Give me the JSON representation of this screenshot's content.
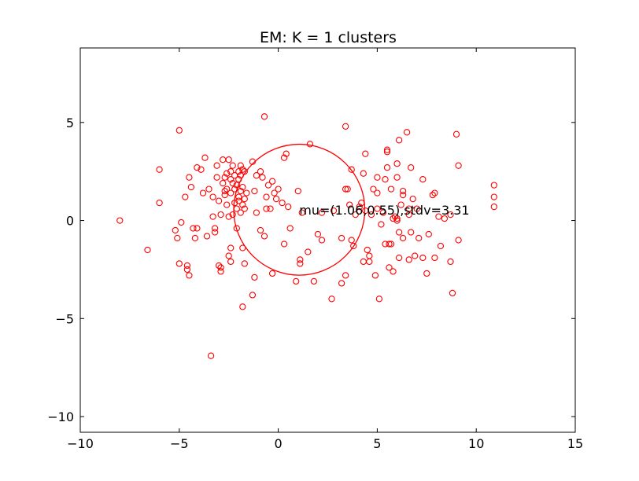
{
  "chart_data": {
    "type": "scatter",
    "title": "EM: K = 1 clusters",
    "xlabel": "",
    "ylabel": "",
    "xlim": [
      -10,
      15
    ],
    "ylim": [
      -10.8,
      8.8
    ],
    "xticks": [
      -10,
      -5,
      0,
      5,
      10,
      15
    ],
    "yticks": [
      -10,
      -5,
      0,
      5
    ],
    "xtick_labels": [
      "−10",
      "−5",
      "0",
      "5",
      "10",
      "15"
    ],
    "ytick_labels": [
      "−10",
      "−5",
      "0",
      "5"
    ],
    "grid": false,
    "marker_color": "#ff0000",
    "circle": {
      "cx": 1.06,
      "cy": 0.55,
      "r": 3.31
    },
    "annotation": {
      "text": "mu=(1.06,0.55),stdv=3.31",
      "x": 1.06,
      "y": 0.55
    },
    "points": [
      [
        -8.0,
        0.0
      ],
      [
        -6.6,
        -1.5
      ],
      [
        -6.0,
        0.9
      ],
      [
        -6.0,
        2.6
      ],
      [
        -5.2,
        -0.5
      ],
      [
        -5.1,
        -0.9
      ],
      [
        -5.0,
        4.6
      ],
      [
        -5.0,
        -2.2
      ],
      [
        -4.9,
        -0.1
      ],
      [
        -4.7,
        1.2
      ],
      [
        -4.6,
        -2.3
      ],
      [
        -4.6,
        -2.5
      ],
      [
        -4.5,
        -2.8
      ],
      [
        -4.4,
        1.7
      ],
      [
        -4.5,
        2.2
      ],
      [
        -4.3,
        -0.4
      ],
      [
        -4.2,
        -0.9
      ],
      [
        -4.1,
        2.7
      ],
      [
        -4.1,
        -0.4
      ],
      [
        -3.9,
        2.6
      ],
      [
        -3.8,
        1.4
      ],
      [
        -3.7,
        3.2
      ],
      [
        -3.6,
        -0.8
      ],
      [
        -3.5,
        1.6
      ],
      [
        -3.4,
        -6.9
      ],
      [
        -3.3,
        0.2
      ],
      [
        -3.3,
        1.2
      ],
      [
        -3.2,
        -0.6
      ],
      [
        -3.2,
        -0.4
      ],
      [
        -3.1,
        2.8
      ],
      [
        -3.1,
        2.2
      ],
      [
        -3.0,
        -2.3
      ],
      [
        -3.0,
        1.0
      ],
      [
        -2.9,
        0.3
      ],
      [
        -2.9,
        -2.6
      ],
      [
        -2.9,
        -2.4
      ],
      [
        -2.8,
        3.1
      ],
      [
        -2.8,
        1.9
      ],
      [
        -2.7,
        1.5
      ],
      [
        -2.7,
        2.2
      ],
      [
        -2.7,
        1.3
      ],
      [
        -2.6,
        1.6
      ],
      [
        -2.6,
        0.8
      ],
      [
        -2.6,
        2.4
      ],
      [
        -2.5,
        0.2
      ],
      [
        -2.5,
        3.1
      ],
      [
        -2.5,
        -1.8
      ],
      [
        -2.4,
        2.5
      ],
      [
        -2.4,
        -2.1
      ],
      [
        -2.4,
        -1.4
      ],
      [
        -2.4,
        1.4
      ],
      [
        -2.4,
        2.1
      ],
      [
        -2.3,
        2.8
      ],
      [
        -2.3,
        0.3
      ],
      [
        -2.3,
        1.9
      ],
      [
        -2.2,
        0.9
      ],
      [
        -2.2,
        1.6
      ],
      [
        -2.2,
        2.3
      ],
      [
        -2.1,
        1.8
      ],
      [
        -2.1,
        -0.4
      ],
      [
        -2.1,
        0.6
      ],
      [
        -2.0,
        1.2
      ],
      [
        -2.0,
        2.1
      ],
      [
        -2.0,
        2.5
      ],
      [
        -2.0,
        1.0
      ],
      [
        -1.9,
        2.8
      ],
      [
        -1.9,
        0.4
      ],
      [
        -1.9,
        1.5
      ],
      [
        -1.9,
        2.3
      ],
      [
        -1.8,
        0.8
      ],
      [
        -1.8,
        1.7
      ],
      [
        -1.8,
        -1.4
      ],
      [
        -1.8,
        2.6
      ],
      [
        -1.8,
        -4.4
      ],
      [
        -1.7,
        1.1
      ],
      [
        -1.7,
        0.6
      ],
      [
        -1.7,
        2.5
      ],
      [
        -1.7,
        -2.2
      ],
      [
        -1.6,
        1.4
      ],
      [
        -1.3,
        3.0
      ],
      [
        -1.3,
        -3.8
      ],
      [
        -1.2,
        -2.9
      ],
      [
        -1.2,
        1.5
      ],
      [
        -1.1,
        0.4
      ],
      [
        -1.1,
        2.3
      ],
      [
        -0.9,
        -0.5
      ],
      [
        -0.9,
        2.5
      ],
      [
        -0.8,
        2.2
      ],
      [
        -0.7,
        -0.8
      ],
      [
        -0.7,
        5.3
      ],
      [
        -0.6,
        0.6
      ],
      [
        -0.6,
        1.2
      ],
      [
        -0.5,
        1.8
      ],
      [
        -0.4,
        0.6
      ],
      [
        -0.3,
        -2.7
      ],
      [
        -0.3,
        2.0
      ],
      [
        -0.2,
        1.4
      ],
      [
        -0.1,
        1.1
      ],
      [
        0.0,
        1.6
      ],
      [
        0.2,
        0.9
      ],
      [
        0.3,
        -1.2
      ],
      [
        0.3,
        3.2
      ],
      [
        0.4,
        3.4
      ],
      [
        0.5,
        0.7
      ],
      [
        0.6,
        -0.4
      ],
      [
        0.9,
        -3.1
      ],
      [
        1.0,
        1.5
      ],
      [
        1.1,
        -2.0
      ],
      [
        1.1,
        -2.2
      ],
      [
        1.2,
        0.4
      ],
      [
        1.5,
        -1.6
      ],
      [
        1.6,
        3.9
      ],
      [
        1.8,
        -3.1
      ],
      [
        2.0,
        -0.7
      ],
      [
        2.2,
        0.4
      ],
      [
        2.2,
        -1.0
      ],
      [
        2.7,
        -4.0
      ],
      [
        2.8,
        0.5
      ],
      [
        3.2,
        -0.9
      ],
      [
        3.2,
        -3.2
      ],
      [
        3.4,
        4.8
      ],
      [
        3.4,
        1.6
      ],
      [
        3.5,
        1.6
      ],
      [
        3.4,
        -2.8
      ],
      [
        3.6,
        0.8
      ],
      [
        3.7,
        -1.0
      ],
      [
        3.7,
        2.6
      ],
      [
        3.8,
        -1.3
      ],
      [
        3.9,
        0.3
      ],
      [
        4.1,
        0.7
      ],
      [
        4.2,
        0.9
      ],
      [
        4.3,
        -2.1
      ],
      [
        4.3,
        2.4
      ],
      [
        4.4,
        3.4
      ],
      [
        4.4,
        0.5
      ],
      [
        4.5,
        -1.5
      ],
      [
        4.6,
        -2.1
      ],
      [
        4.6,
        -1.8
      ],
      [
        4.7,
        0.3
      ],
      [
        4.8,
        1.6
      ],
      [
        4.9,
        -2.8
      ],
      [
        5.0,
        2.2
      ],
      [
        5.0,
        0.6
      ],
      [
        5.0,
        1.4
      ],
      [
        5.1,
        -4.0
      ],
      [
        5.2,
        -0.2
      ],
      [
        5.3,
        0.4
      ],
      [
        5.4,
        2.1
      ],
      [
        5.4,
        -1.2
      ],
      [
        5.5,
        3.6
      ],
      [
        5.5,
        3.5
      ],
      [
        5.5,
        2.7
      ],
      [
        5.6,
        -2.4
      ],
      [
        5.6,
        -1.2
      ],
      [
        5.7,
        1.6
      ],
      [
        5.7,
        -1.2
      ],
      [
        5.8,
        0.1
      ],
      [
        5.8,
        -2.6
      ],
      [
        5.9,
        0.2
      ],
      [
        6.0,
        0.1
      ],
      [
        6.0,
        2.2
      ],
      [
        6.0,
        2.9
      ],
      [
        6.0,
        0.0
      ],
      [
        6.1,
        -0.6
      ],
      [
        6.1,
        -1.9
      ],
      [
        6.1,
        4.1
      ],
      [
        6.2,
        0.8
      ],
      [
        6.3,
        1.3
      ],
      [
        6.3,
        1.5
      ],
      [
        6.3,
        -0.9
      ],
      [
        6.5,
        4.5
      ],
      [
        6.6,
        0.6
      ],
      [
        6.6,
        0.3
      ],
      [
        6.6,
        -2.0
      ],
      [
        6.7,
        -0.6
      ],
      [
        6.7,
        2.7
      ],
      [
        6.8,
        1.1
      ],
      [
        6.9,
        -1.8
      ],
      [
        7.0,
        0.6
      ],
      [
        7.1,
        -0.9
      ],
      [
        7.3,
        2.1
      ],
      [
        7.3,
        -1.9
      ],
      [
        7.5,
        -2.7
      ],
      [
        7.6,
        -0.7
      ],
      [
        7.8,
        1.3
      ],
      [
        7.9,
        1.4
      ],
      [
        7.9,
        -1.9
      ],
      [
        8.1,
        0.2
      ],
      [
        8.2,
        -1.3
      ],
      [
        8.4,
        0.1
      ],
      [
        8.7,
        0.3
      ],
      [
        8.7,
        -2.1
      ],
      [
        8.8,
        -3.7
      ],
      [
        9.0,
        4.4
      ],
      [
        9.1,
        2.8
      ],
      [
        9.1,
        -1.0
      ],
      [
        10.9,
        0.7
      ],
      [
        10.9,
        1.2
      ],
      [
        10.9,
        1.8
      ]
    ]
  }
}
